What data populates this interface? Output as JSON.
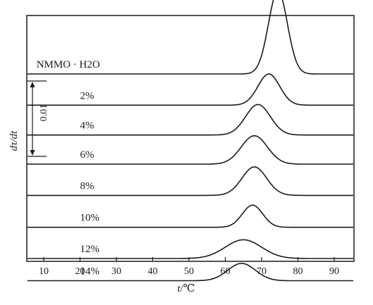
{
  "chart_data": {
    "type": "line",
    "xlabel_var": "t",
    "xlabel_unit": "/℃",
    "ylabel": "dτ/dt",
    "scale_bar_label": "0.01",
    "xlim": [
      5,
      96
    ],
    "xticks": [
      10,
      20,
      30,
      40,
      50,
      60,
      70,
      80,
      90
    ],
    "grid": false,
    "series": [
      {
        "name": "NMMO · H2O",
        "label_x": 8,
        "baseline": 0.0,
        "peak_center": 74.5,
        "peak_height": 0.012,
        "peak_width": 2.6
      },
      {
        "name": "2%",
        "label_x": 20,
        "baseline": -0.0045,
        "peak_center": 72,
        "peak_height": 0.0045,
        "peak_width": 3.0
      },
      {
        "name": "4%",
        "label_x": 20,
        "baseline": -0.0088,
        "peak_center": 69,
        "peak_height": 0.0044,
        "peak_width": 3.4
      },
      {
        "name": "6%",
        "label_x": 20,
        "baseline": -0.013,
        "peak_center": 68,
        "peak_height": 0.0041,
        "peak_width": 3.6
      },
      {
        "name": "8%",
        "label_x": 20,
        "baseline": -0.0175,
        "peak_center": 68,
        "peak_height": 0.0041,
        "peak_width": 3.4
      },
      {
        "name": "10%",
        "label_x": 20,
        "baseline": -0.0221,
        "peak_center": 67.5,
        "peak_height": 0.0032,
        "peak_width": 2.8
      },
      {
        "name": "12%",
        "label_x": 20,
        "baseline": -0.0266,
        "peak_center": 65,
        "peak_height": 0.0027,
        "peak_width": 5.0
      },
      {
        "name": "14%",
        "label_x": 20,
        "baseline": -0.0298,
        "peak_center": 64.5,
        "peak_height": 0.0025,
        "peak_width": 3.8
      }
    ]
  }
}
